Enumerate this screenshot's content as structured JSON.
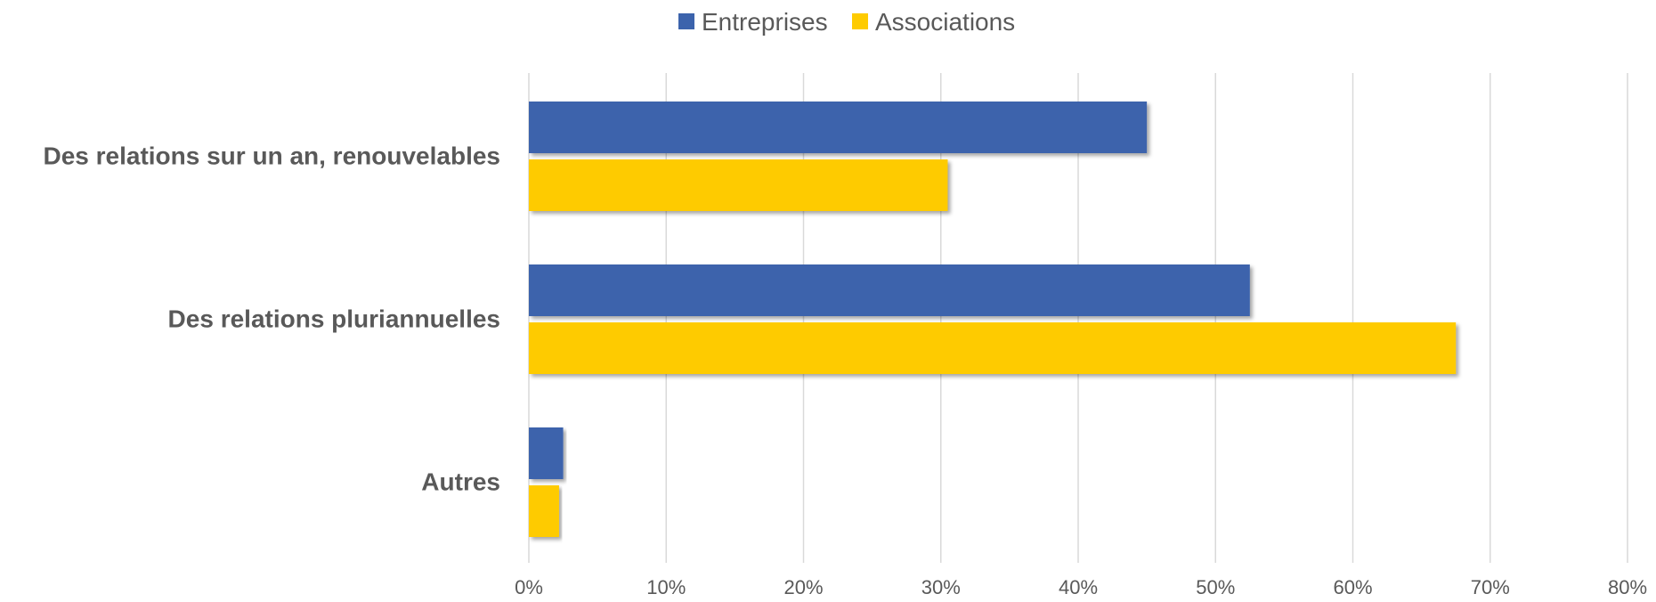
{
  "chart_data": {
    "type": "bar",
    "orientation": "horizontal",
    "categories": [
      "Des relations sur un an, renouvelables",
      "Des relations pluriannuelles",
      "Autres"
    ],
    "series": [
      {
        "name": "Entreprises",
        "values": [
          45,
          52.5,
          2.5
        ],
        "color": "#3c63ac"
      },
      {
        "name": "Associations",
        "values": [
          30.5,
          67.5,
          2.2
        ],
        "color": "#fecb00"
      }
    ],
    "xlim": [
      0,
      80
    ],
    "xticks": [
      0,
      10,
      20,
      30,
      40,
      50,
      60,
      70,
      80
    ],
    "tick_format": "percent",
    "grid": "vertical",
    "legend_position": "top-center"
  }
}
